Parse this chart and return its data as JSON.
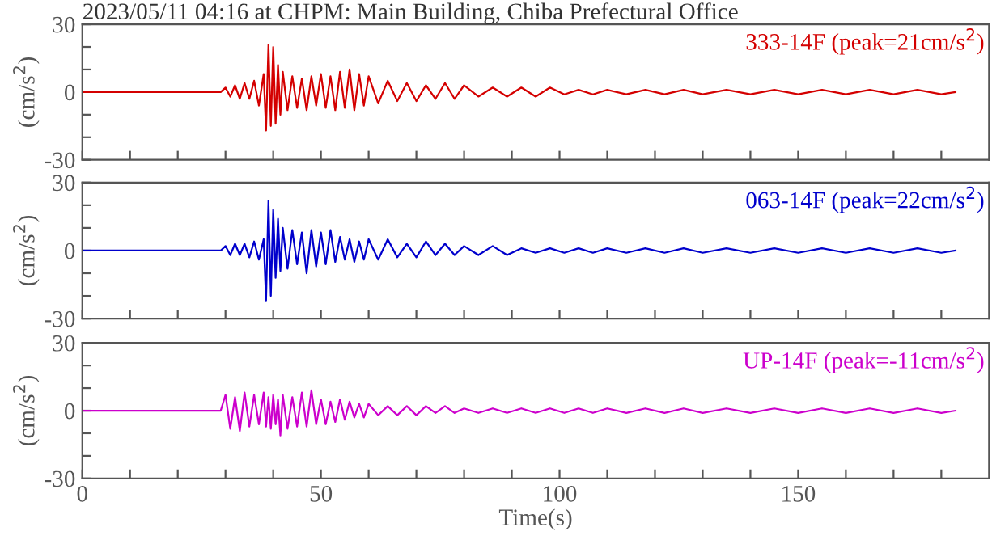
{
  "chart_data": [
    {
      "type": "line",
      "title": "2023/05/11 04:16 at CHPM: Main Building, Chiba Prefectural Office",
      "ylabel": "(cm/s$^{2}$)",
      "tick_labels": "y",
      "xlim": [
        0,
        190
      ],
      "xticks": [
        0,
        {
          "value": 10,
          "label": null
        },
        {
          "value": 20,
          "label": null
        },
        {
          "value": 30,
          "label": null
        },
        {
          "value": 40,
          "label": null
        },
        50,
        {
          "value": 60,
          "label": null
        },
        {
          "value": 70,
          "label": null
        },
        {
          "value": 80,
          "label": null
        },
        {
          "value": 90,
          "label": null
        },
        100,
        {
          "value": 110,
          "label": null
        },
        {
          "value": 120,
          "label": null
        },
        {
          "value": 130,
          "label": null
        },
        {
          "value": 140,
          "label": null
        },
        150,
        {
          "value": 160,
          "label": null
        },
        {
          "value": 170,
          "label": null
        },
        {
          "value": 180,
          "label": null
        }
      ],
      "ylim": [
        -30,
        30
      ],
      "yticks": [
        -30,
        {
          "value": -20,
          "label": null
        },
        {
          "value": -10,
          "label": null
        },
        0,
        {
          "value": 10,
          "label": null
        },
        {
          "value": 20,
          "label": null
        },
        30
      ],
      "x": [
        0,
        29,
        30,
        31,
        32,
        33,
        34,
        35,
        36,
        37,
        38,
        38.5,
        39,
        39.5,
        40,
        40.5,
        41,
        41.5,
        42,
        43,
        44,
        45,
        46,
        47,
        48,
        49,
        50,
        51,
        52,
        53,
        54,
        55,
        56,
        57,
        58,
        59,
        60,
        62,
        64,
        66,
        68,
        70,
        72,
        74,
        76,
        78,
        80,
        83,
        86,
        89,
        92,
        95,
        98,
        101,
        104,
        107,
        110,
        114,
        118,
        122,
        126,
        130,
        135,
        140,
        145,
        150,
        155,
        160,
        165,
        170,
        175,
        180,
        183
      ],
      "series": [
        {
          "name": "333-14F (peak=21cm/s$^{2}$)",
          "color": "#d40000",
          "values": [
            0,
            0,
            2,
            -2,
            3,
            -3,
            4,
            -3,
            5,
            -6,
            8,
            -17,
            21,
            -15,
            20,
            -14,
            12,
            -10,
            9,
            -8,
            7,
            -7,
            6,
            -8,
            7,
            -6,
            8,
            -7,
            7,
            -8,
            9,
            -7,
            10,
            -8,
            8,
            -6,
            7,
            -5,
            5,
            -4,
            4,
            -4,
            3,
            -3,
            4,
            -3,
            3,
            -2,
            2,
            -2,
            2,
            -2,
            2,
            -1,
            1,
            -1,
            1,
            -1,
            1,
            -1,
            1,
            -1,
            1,
            -1,
            1,
            -1,
            1,
            -1,
            1,
            -1,
            1,
            -1,
            0
          ]
        }
      ]
    },
    {
      "type": "line",
      "ylabel": "(cm/s$^{2}$)",
      "tick_labels": "y",
      "xlim": [
        0,
        190
      ],
      "xticks": [
        0,
        {
          "value": 10,
          "label": null
        },
        {
          "value": 20,
          "label": null
        },
        {
          "value": 30,
          "label": null
        },
        {
          "value": 40,
          "label": null
        },
        50,
        {
          "value": 60,
          "label": null
        },
        {
          "value": 70,
          "label": null
        },
        {
          "value": 80,
          "label": null
        },
        {
          "value": 90,
          "label": null
        },
        100,
        {
          "value": 110,
          "label": null
        },
        {
          "value": 120,
          "label": null
        },
        {
          "value": 130,
          "label": null
        },
        {
          "value": 140,
          "label": null
        },
        150,
        {
          "value": 160,
          "label": null
        },
        {
          "value": 170,
          "label": null
        },
        {
          "value": 180,
          "label": null
        }
      ],
      "ylim": [
        -30,
        30
      ],
      "yticks": [
        -30,
        {
          "value": -20,
          "label": null
        },
        {
          "value": -10,
          "label": null
        },
        0,
        {
          "value": 10,
          "label": null
        },
        {
          "value": 20,
          "label": null
        },
        30
      ],
      "x": [
        0,
        29,
        30,
        31,
        32,
        33,
        34,
        35,
        36,
        37,
        38,
        38.5,
        39,
        39.5,
        40,
        40.5,
        41,
        41.5,
        42,
        43,
        44,
        45,
        46,
        47,
        48,
        49,
        50,
        51,
        52,
        53,
        54,
        55,
        56,
        57,
        58,
        59,
        60,
        62,
        64,
        66,
        68,
        70,
        72,
        74,
        76,
        78,
        80,
        83,
        86,
        89,
        92,
        95,
        98,
        101,
        104,
        107,
        110,
        114,
        118,
        122,
        126,
        130,
        135,
        140,
        145,
        150,
        155,
        160,
        165,
        170,
        175,
        180,
        183
      ],
      "series": [
        {
          "name": "063-14F (peak=22cm/s$^{2}$)",
          "color": "#0000cc",
          "values": [
            0,
            0,
            2,
            -2,
            3,
            -2,
            3,
            -3,
            4,
            -4,
            5,
            -22,
            22,
            -20,
            18,
            -12,
            14,
            -9,
            10,
            -8,
            9,
            -6,
            8,
            -10,
            9,
            -7,
            8,
            -6,
            9,
            -5,
            6,
            -4,
            5,
            -5,
            4,
            -4,
            5,
            -4,
            5,
            -3,
            3,
            -3,
            4,
            -2,
            3,
            -2,
            2,
            -2,
            2,
            -2,
            1,
            -1,
            1,
            -1,
            1,
            -1,
            1,
            -1,
            1,
            -1,
            1,
            -1,
            1,
            -1,
            1,
            -1,
            1,
            -1,
            1,
            -1,
            1,
            -1,
            0
          ]
        }
      ]
    },
    {
      "type": "line",
      "ylabel": "(cm/s$^{2}$)",
      "xlabel": "Time(s)",
      "xlim": [
        0,
        190
      ],
      "xticks": [
        0,
        {
          "value": 10,
          "label": null
        },
        {
          "value": 20,
          "label": null
        },
        {
          "value": 30,
          "label": null
        },
        {
          "value": 40,
          "label": null
        },
        50,
        {
          "value": 60,
          "label": null
        },
        {
          "value": 70,
          "label": null
        },
        {
          "value": 80,
          "label": null
        },
        {
          "value": 90,
          "label": null
        },
        100,
        {
          "value": 110,
          "label": null
        },
        {
          "value": 120,
          "label": null
        },
        {
          "value": 130,
          "label": null
        },
        {
          "value": 140,
          "label": null
        },
        150,
        {
          "value": 160,
          "label": null
        },
        {
          "value": 170,
          "label": null
        },
        {
          "value": 180,
          "label": null
        }
      ],
      "ylim": [
        -30,
        30
      ],
      "yticks": [
        -30,
        {
          "value": -20,
          "label": null
        },
        {
          "value": -10,
          "label": null
        },
        0,
        {
          "value": 10,
          "label": null
        },
        {
          "value": 20,
          "label": null
        },
        30
      ],
      "x": [
        0,
        29,
        30,
        31,
        32,
        33,
        34,
        35,
        36,
        37,
        38,
        38.5,
        39,
        39.5,
        40,
        40.5,
        41,
        41.5,
        42,
        43,
        44,
        45,
        46,
        47,
        48,
        49,
        50,
        51,
        52,
        53,
        54,
        55,
        56,
        57,
        58,
        59,
        60,
        62,
        64,
        66,
        68,
        70,
        72,
        74,
        76,
        78,
        80,
        83,
        86,
        89,
        92,
        95,
        98,
        101,
        104,
        107,
        110,
        114,
        118,
        122,
        126,
        130,
        135,
        140,
        145,
        150,
        155,
        160,
        165,
        170,
        175,
        180,
        183
      ],
      "series": [
        {
          "name": "UP-14F (peak=-11cm/s$^{2}$)",
          "color": "#cc00cc",
          "values": [
            0,
            0,
            7,
            -8,
            6,
            -9,
            8,
            -7,
            7,
            -6,
            8,
            -7,
            6,
            -8,
            7,
            -6,
            5,
            -11,
            7,
            -8,
            6,
            -7,
            8,
            -7,
            9,
            -6,
            5,
            -6,
            4,
            -5,
            5,
            -4,
            4,
            -3,
            3,
            -3,
            3,
            -2,
            2,
            -2,
            2,
            -2,
            2,
            -1,
            2,
            -1,
            1,
            -1,
            1,
            -1,
            1,
            -1,
            1,
            -1,
            1,
            -1,
            1,
            -1,
            1,
            -1,
            1,
            -1,
            1,
            -1,
            1,
            -1,
            1,
            -1,
            1,
            -1,
            1,
            -1,
            0
          ]
        }
      ]
    }
  ]
}
